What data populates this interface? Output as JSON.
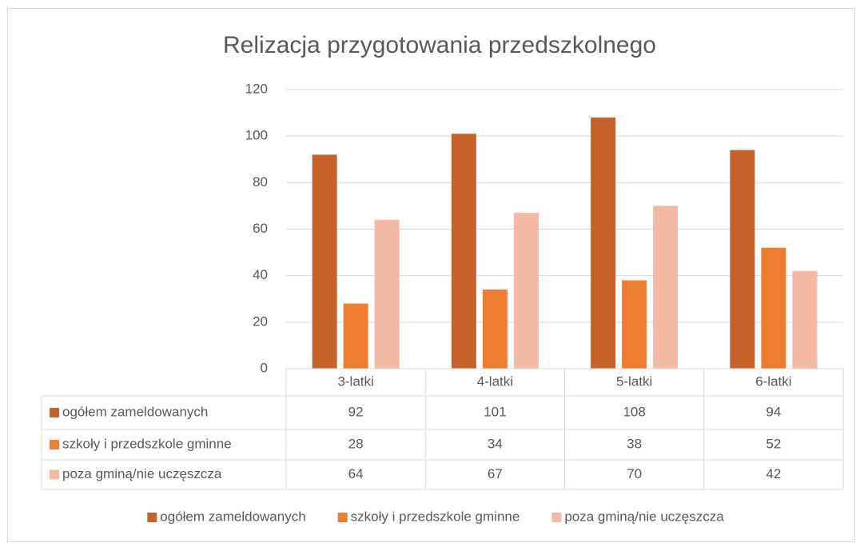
{
  "chart_data": {
    "type": "bar",
    "title": "Relizacja przygotowania przedszkolnego",
    "categories": [
      "3-latki",
      "4-latki",
      "5-latki",
      "6-latki"
    ],
    "series": [
      {
        "name": "ogółem zameldowanych",
        "color": "#c5622b",
        "values": [
          92,
          101,
          108,
          94
        ]
      },
      {
        "name": "szkoły i przedszkole gminne",
        "color": "#ed7d31",
        "values": [
          28,
          34,
          38,
          52
        ]
      },
      {
        "name": "poza gminą/nie uczęszcza",
        "color": "#f4b9a2",
        "values": [
          64,
          67,
          70,
          42
        ]
      }
    ],
    "ylim": [
      0,
      120
    ],
    "yticks": [
      0,
      20,
      40,
      60,
      80,
      100,
      120
    ],
    "grid": true,
    "legend": "bottom",
    "data_table": true
  }
}
